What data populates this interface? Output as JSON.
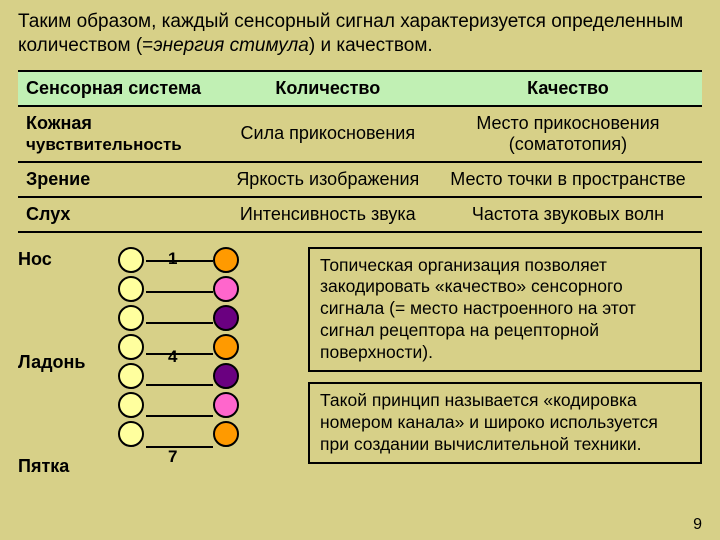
{
  "background_color": "#d7d088",
  "intro": {
    "before_em": "Таким образом, каждый сенсорный сигнал характеризуется определенным количеством (=",
    "em": "энергия стимула",
    "after_em": ") и качеством."
  },
  "table": {
    "header_bg": "#c1f0b4",
    "headers": [
      "Сенсорная система",
      "Количество",
      "Качество"
    ],
    "rows": [
      {
        "system": "Кожная",
        "system_sub": "чувствительность",
        "qty": "Сила прикосновения",
        "qual": "Место прикосновения",
        "qual_sub": "(соматотопия)"
      },
      {
        "system": "Зрение",
        "qty": "Яркость изображения",
        "qual": "Место точки в пространстве"
      },
      {
        "system": "Слух",
        "qty": "Интенсивность звука",
        "qual": "Частота звуковых волн"
      }
    ]
  },
  "body_labels": {
    "nose": "Нос",
    "palm": "Ладонь",
    "heel": "Пятка"
  },
  "diagram": {
    "numbers": [
      "1",
      "4",
      "7"
    ],
    "col1_colors": [
      "#ffff9e",
      "#ffff9e",
      "#ffff9e",
      "#ffff9e",
      "#ffff9e",
      "#ffff9e",
      "#ffff9e"
    ],
    "col2_colors": [
      "#ff9a00",
      "#ff66cc",
      "#6a0080",
      "#ff9a00",
      "#6a0080",
      "#ff66cc",
      "#ff9a00"
    ],
    "line_color": "#000000",
    "circle_border": "#000000"
  },
  "textboxes": {
    "box1": "Топическая организация позволяет закодировать «качество» сенсорного сигнала (= место настроенного на этот сигнал рецептора на рецепторной поверхности).",
    "box2": "Такой принцип называется «кодировка номером канала» и широко используется при создании вычислительной техники."
  },
  "page_number": "9",
  "box_bg": "#d7d088"
}
